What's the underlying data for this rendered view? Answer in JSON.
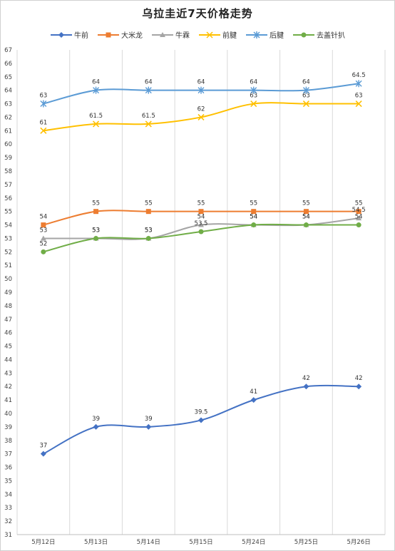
{
  "chart_data": {
    "type": "line",
    "title": "乌拉圭近7天价格走势",
    "categories": [
      "5月12日",
      "5月13日",
      "5月14日",
      "5月15日",
      "5月24日",
      "5月25日",
      "5月26日"
    ],
    "ylim": [
      31,
      67
    ],
    "ytick_step": 1,
    "grid": "vertical",
    "legend": "top",
    "xlabel": "",
    "ylabel": "",
    "series": [
      {
        "name": "牛前",
        "color": "#4472c4",
        "marker": "diamond",
        "values": [
          37,
          39,
          39,
          39.5,
          41,
          42,
          42
        ],
        "labels": [
          "37",
          "39",
          "39",
          "39.5",
          "41",
          "42",
          "42"
        ]
      },
      {
        "name": "大米龙",
        "color": "#ed7d31",
        "marker": "square",
        "values": [
          54,
          55,
          55,
          55,
          55,
          55,
          55
        ],
        "labels": [
          "54",
          "55",
          "55",
          "55",
          "55",
          "55",
          "55"
        ]
      },
      {
        "name": "牛霖",
        "color": "#a5a5a5",
        "marker": "triangle",
        "values": [
          53,
          53,
          53,
          54,
          54,
          54,
          54.5
        ],
        "labels": [
          "53",
          "53",
          "53",
          "54",
          "54",
          "54",
          "54.5"
        ]
      },
      {
        "name": "前腱",
        "color": "#ffc000",
        "marker": "x",
        "values": [
          61,
          61.5,
          61.5,
          62,
          63,
          63,
          63
        ],
        "labels": [
          "61",
          "61.5",
          "61.5",
          "62",
          "63",
          "63",
          "63"
        ]
      },
      {
        "name": "后腱",
        "color": "#5b9bd5",
        "marker": "star",
        "values": [
          63,
          64,
          64,
          64,
          64,
          64,
          64.5
        ],
        "labels": [
          "63",
          "64",
          "64",
          "64",
          "64",
          "64",
          "64.5"
        ]
      },
      {
        "name": "去盖针扒",
        "color": "#70ad47",
        "marker": "circle",
        "values": [
          52,
          53,
          53,
          53.5,
          54,
          54,
          54
        ],
        "labels": [
          "52",
          "53",
          "53",
          "53.5",
          "54",
          "54",
          "54"
        ]
      }
    ]
  }
}
